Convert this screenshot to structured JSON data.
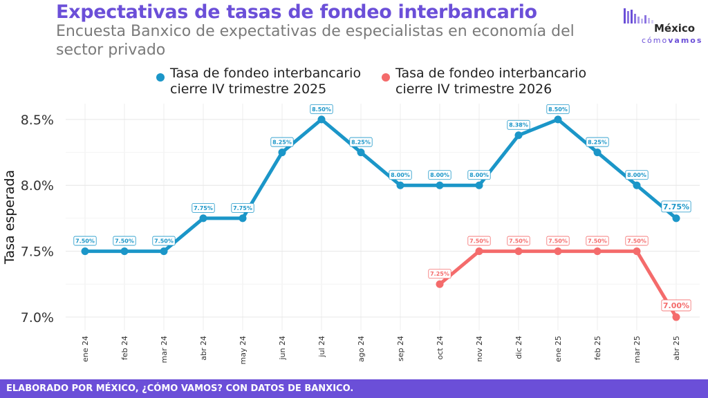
{
  "header": {
    "title": "Expectativas de tasas de fondeo interbancario",
    "subtitle": "Encuesta Banxico de expectativas de especialistas en economía del sector privado"
  },
  "logo": {
    "name": "México",
    "tag_light": "cómo",
    "tag_bold": "vamos"
  },
  "footer": {
    "text": "ELABORADO POR MÉXICO, ¿CÓMO VAMOS? CON DATOS DE BANXICO."
  },
  "colors": {
    "accent": "#6b4fd8",
    "series_2025": "#1b96c8",
    "series_2026": "#f46b6b",
    "grid": "#ebebeb"
  },
  "chart_data": {
    "type": "line",
    "title": "Expectativas de tasas de fondeo interbancario",
    "subtitle": "Encuesta Banxico de expectativas de especialistas en economía del sector privado",
    "xlabel": "",
    "ylabel": "Tasa esperada",
    "categories": [
      "ene 24",
      "feb 24",
      "mar 24",
      "abr 24",
      "may 24",
      "jun 24",
      "jul 24",
      "ago 24",
      "sep 24",
      "oct 24",
      "nov 24",
      "dic 24",
      "ene 25",
      "feb 25",
      "mar 25",
      "abr 25"
    ],
    "yticks": [
      7.0,
      7.5,
      8.0,
      8.5
    ],
    "ytick_labels": [
      "7.0%",
      "7.5%",
      "8.0%",
      "8.5%"
    ],
    "ylim": [
      6.9,
      8.62
    ],
    "grid": true,
    "legend_position": "top",
    "series": [
      {
        "name": "Tasa de fondeo interbancario cierre IV trimestre 2025",
        "color": "#1b96c8",
        "values": [
          7.5,
          7.5,
          7.5,
          7.75,
          7.75,
          8.25,
          8.5,
          8.25,
          8.0,
          8.0,
          8.0,
          8.38,
          8.5,
          8.25,
          8.0,
          7.75
        ],
        "labels": [
          "7.50%",
          "7.50%",
          "7.50%",
          "7.75%",
          "7.75%",
          "8.25%",
          "8.50%",
          "8.25%",
          "8.00%",
          "8.00%",
          "8.00%",
          "8.38%",
          "8.50%",
          "8.25%",
          "8.00%",
          "7.75%"
        ]
      },
      {
        "name": "Tasa de fondeo interbancario cierre IV trimestre 2026",
        "color": "#f46b6b",
        "values": [
          null,
          null,
          null,
          null,
          null,
          null,
          null,
          null,
          null,
          7.25,
          7.5,
          7.5,
          7.5,
          7.5,
          7.5,
          7.0
        ],
        "labels": [
          null,
          null,
          null,
          null,
          null,
          null,
          null,
          null,
          null,
          "7.25%",
          "7.50%",
          "7.50%",
          "7.50%",
          "7.50%",
          "7.50%",
          "7.00%"
        ]
      }
    ]
  }
}
